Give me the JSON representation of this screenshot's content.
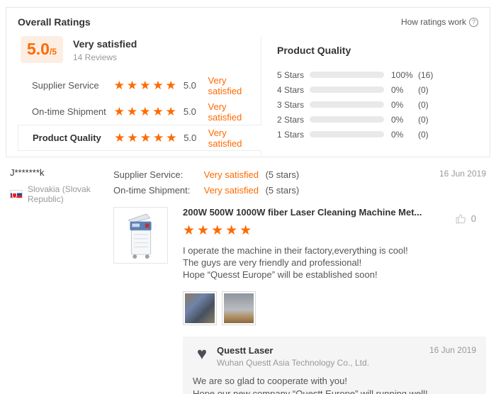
{
  "colors": {
    "accent": "#ff6a00",
    "badge_bg": "#fdeee3",
    "bar_track": "#e9e9e9",
    "reply_bg": "#f5f5f5"
  },
  "header": {
    "title": "Overall Ratings",
    "help_label": "How ratings work"
  },
  "summary": {
    "score": "5.0",
    "scale": "/5",
    "verdict": "Very satisfied",
    "reviews_count": "14 Reviews"
  },
  "rating_tabs": [
    {
      "label": "Supplier Service",
      "stars": 5,
      "score": "5.0",
      "verdict": "Very satisfied"
    },
    {
      "label": "On-time Shipment",
      "stars": 5,
      "score": "5.0",
      "verdict": "Very satisfied"
    },
    {
      "label": "Product Quality",
      "stars": 5,
      "score": "5.0",
      "verdict": "Very satisfied"
    }
  ],
  "distribution": {
    "title": "Product Quality",
    "rows": [
      {
        "label": "5 Stars",
        "value": 100,
        "percent": "100%",
        "count": "(16)"
      },
      {
        "label": "4 Stars",
        "value": 0,
        "percent": "0%",
        "count": "(0)"
      },
      {
        "label": "3 Stars",
        "value": 0,
        "percent": "0%",
        "count": "(0)"
      },
      {
        "label": "2 Stars",
        "value": 0,
        "percent": "0%",
        "count": "(0)"
      },
      {
        "label": "1 Stars",
        "value": 0,
        "percent": "0%",
        "count": "(0)"
      }
    ]
  },
  "review": {
    "author": "J*******k",
    "country": "Slovakia (Slovak Republic)",
    "date": "16 Jun 2019",
    "ratings": [
      {
        "label": "Supplier Service:",
        "verdict": "Very satisfied",
        "stars_text": "(5 stars)"
      },
      {
        "label": "On-time Shipment:",
        "verdict": "Very satisfied",
        "stars_text": "(5 stars)"
      }
    ],
    "product_title": "200W 500W 1000W fiber Laser Cleaning Machine Met...",
    "stars": 5,
    "text_lines": [
      "I operate the machine in their factory,everything is cool!",
      "The guys are very friendly and professional!",
      "Hope “Quesst Europe” will be established soon!"
    ],
    "likes_count": "0"
  },
  "reply": {
    "company": "Questt Laser",
    "company_full": "Wuhan Questt Asia Technology Co., Ltd.",
    "date": "16 Jun 2019",
    "text_lines": [
      "We are so glad to cooperate with you!",
      "Hope our new company “Questt Europe” will running well!"
    ]
  }
}
